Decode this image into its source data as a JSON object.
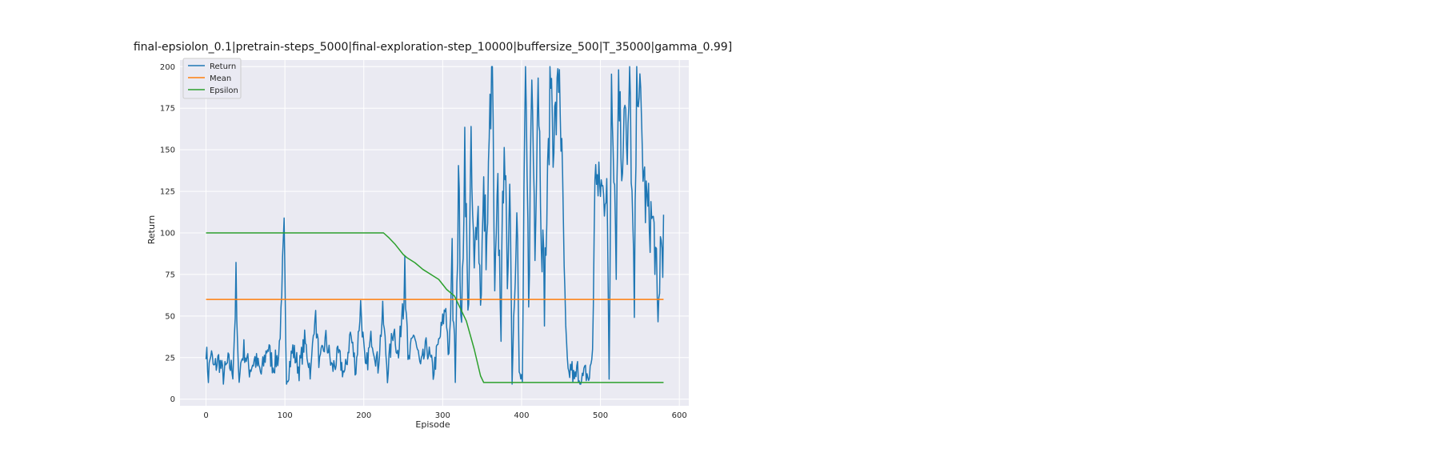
{
  "chart_data": {
    "type": "line",
    "title": "final-epsiolon_0.1|pretrain-steps_5000|final-exploration-step_10000|buffersize_500|T_35000|gamma_0.99]",
    "xlabel": "Episode",
    "ylabel": "Return",
    "xlim": [
      -33,
      612
    ],
    "ylim": [
      -4,
      204
    ],
    "xticks": [
      0,
      100,
      200,
      300,
      400,
      500,
      600
    ],
    "yticks": [
      0,
      25,
      50,
      75,
      100,
      125,
      150,
      175,
      200
    ],
    "grid": true,
    "legend": "upper-left",
    "series": [
      {
        "name": "Return",
        "color": "#1f77b4",
        "kind": "return",
        "keypoints": [
          [
            0,
            31
          ],
          [
            3,
            14
          ],
          [
            6,
            28
          ],
          [
            10,
            18
          ],
          [
            16,
            24
          ],
          [
            22,
            14
          ],
          [
            28,
            22
          ],
          [
            34,
            17
          ],
          [
            38,
            63
          ],
          [
            41,
            14
          ],
          [
            48,
            30
          ],
          [
            55,
            18
          ],
          [
            62,
            24
          ],
          [
            70,
            15
          ],
          [
            78,
            32
          ],
          [
            85,
            20
          ],
          [
            92,
            26
          ],
          [
            96,
            57
          ],
          [
            99,
            91
          ],
          [
            102,
            12
          ],
          [
            110,
            30
          ],
          [
            118,
            18
          ],
          [
            125,
            35
          ],
          [
            133,
            16
          ],
          [
            138,
            53
          ],
          [
            144,
            20
          ],
          [
            152,
            36
          ],
          [
            160,
            18
          ],
          [
            168,
            26
          ],
          [
            176,
            14
          ],
          [
            183,
            40
          ],
          [
            190,
            18
          ],
          [
            196,
            57
          ],
          [
            202,
            16
          ],
          [
            210,
            38
          ],
          [
            218,
            20
          ],
          [
            224,
            52
          ],
          [
            230,
            16
          ],
          [
            238,
            44
          ],
          [
            244,
            24
          ],
          [
            248,
            50
          ],
          [
            252,
            90
          ],
          [
            256,
            20
          ],
          [
            264,
            40
          ],
          [
            272,
            18
          ],
          [
            280,
            32
          ],
          [
            288,
            16
          ],
          [
            296,
            36
          ],
          [
            304,
            56
          ],
          [
            308,
            22
          ],
          [
            312,
            80
          ],
          [
            316,
            17
          ],
          [
            320,
            132
          ],
          [
            324,
            40
          ],
          [
            328,
            158
          ],
          [
            332,
            50
          ],
          [
            336,
            144
          ],
          [
            340,
            70
          ],
          [
            344,
            128
          ],
          [
            348,
            60
          ],
          [
            352,
            120
          ],
          [
            356,
            90
          ],
          [
            360,
            170
          ],
          [
            363,
            200
          ],
          [
            366,
            60
          ],
          [
            370,
            120
          ],
          [
            374,
            40
          ],
          [
            378,
            170
          ],
          [
            382,
            60
          ],
          [
            385,
            150
          ],
          [
            388,
            10
          ],
          [
            391,
            70
          ],
          [
            394,
            130
          ],
          [
            397,
            12
          ],
          [
            401,
            12
          ],
          [
            405,
            200
          ],
          [
            409,
            60
          ],
          [
            413,
            195
          ],
          [
            417,
            100
          ],
          [
            421,
            200
          ],
          [
            425,
            110
          ],
          [
            429,
            64
          ],
          [
            433,
            125
          ],
          [
            437,
            200
          ],
          [
            440,
            160
          ],
          [
            444,
            170
          ],
          [
            448,
            200
          ],
          [
            452,
            120
          ],
          [
            456,
            40
          ],
          [
            459,
            12
          ],
          [
            463,
            20
          ],
          [
            467,
            10
          ],
          [
            471,
            18
          ],
          [
            476,
            10
          ],
          [
            481,
            16
          ],
          [
            486,
            12
          ],
          [
            490,
            30
          ],
          [
            494,
            150
          ],
          [
            497,
            120
          ],
          [
            500,
            130
          ],
          [
            504,
            120
          ],
          [
            508,
            140
          ],
          [
            511,
            10
          ],
          [
            514,
            200
          ],
          [
            517,
            150
          ],
          [
            520,
            90
          ],
          [
            523,
            200
          ],
          [
            527,
            140
          ],
          [
            531,
            190
          ],
          [
            534,
            130
          ],
          [
            537,
            200
          ],
          [
            540,
            120
          ],
          [
            543,
            48
          ],
          [
            546,
            200
          ],
          [
            549,
            190
          ],
          [
            553,
            150
          ],
          [
            557,
            120
          ],
          [
            561,
            110
          ],
          [
            565,
            108
          ],
          [
            569,
            95
          ],
          [
            573,
            44
          ],
          [
            576,
            92
          ],
          [
            580,
            95
          ]
        ]
      },
      {
        "name": "Mean",
        "color": "#ff7f0e",
        "kind": "flat",
        "x": [
          0,
          580
        ],
        "y": [
          60,
          60
        ]
      },
      {
        "name": "Epsilon",
        "color": "#2ca02c",
        "kind": "line",
        "x": [
          0,
          225,
          232,
          240,
          250,
          255,
          265,
          275,
          285,
          295,
          305,
          315,
          322,
          330,
          340,
          348,
          352,
          580
        ],
        "y": [
          100,
          100,
          97,
          93,
          87,
          85,
          82,
          78,
          75,
          72,
          66,
          62,
          55,
          47,
          30,
          14,
          10,
          10
        ]
      }
    ]
  }
}
